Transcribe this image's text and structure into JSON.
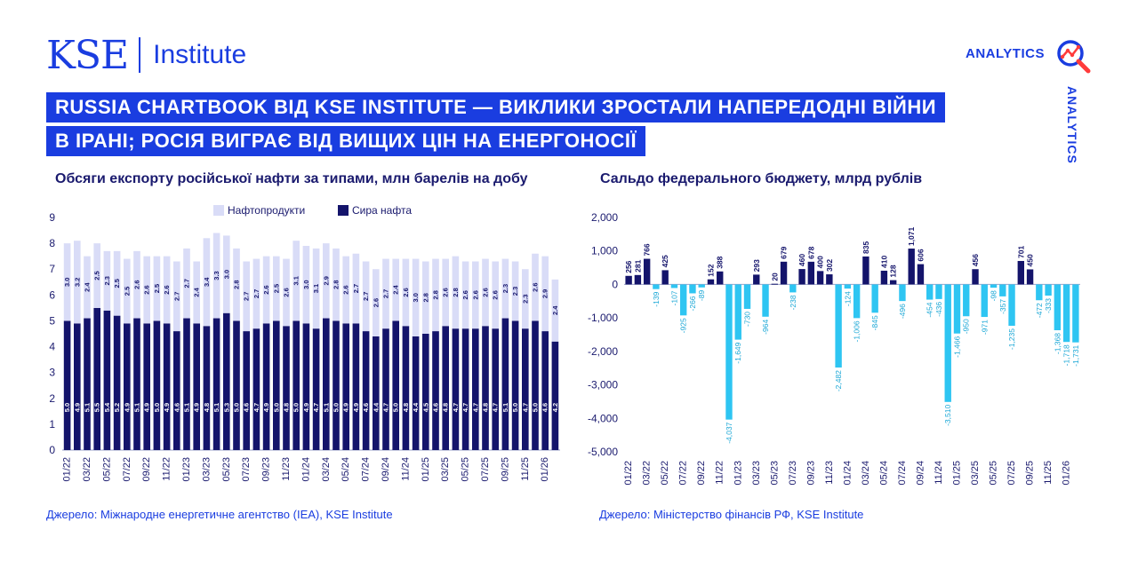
{
  "brand": {
    "logo": "KSE",
    "name": "Institute",
    "analytics": "ANALYTICS",
    "analytics_vertical": "ANALYTICS",
    "analytics_icon": "magnifier-chart-icon"
  },
  "banner": {
    "line1": "RUSSIA CHARTBOOK ВІД KSE INSTITUTE — ВИКЛИКИ ЗРОСТАЛИ НАПЕРЕДОДНІ ВІЙНИ",
    "line2": "В ІРАНІ; РОСІЯ ВИГРАЄ ВІД ВИЩИХ ЦІН НА ЕНЕРГОНОСІЇ"
  },
  "colors": {
    "brand": "#1a3de0",
    "crude": "#14146b",
    "products": "#d9dcf7",
    "surplus": "#14146b",
    "deficit": "#2ec5f2"
  },
  "chart_data": [
    {
      "type": "bar",
      "stacked": true,
      "title": "Обсяги експорту російської нафти за типами, млн барелів на добу",
      "source": "Джерело: Міжнародне енергетичне агентство (IEA), KSE Institute",
      "ylim": [
        0,
        9
      ],
      "yticks": [
        "0",
        "1",
        "2",
        "3",
        "4",
        "5",
        "6",
        "7",
        "8",
        "9"
      ],
      "legend": [
        "Нафтопродукти",
        "Сира нафта"
      ],
      "legend_position": "top",
      "x_ticks_shown": [
        "01/22",
        "03/22",
        "05/22",
        "07/22",
        "09/22",
        "11/22",
        "01/23",
        "03/23",
        "05/23",
        "07/23",
        "09/23",
        "11/23",
        "01/24",
        "03/24",
        "05/24",
        "07/24",
        "09/24",
        "11/24",
        "01/25",
        "03/25",
        "05/25",
        "07/25",
        "09/25",
        "11/25",
        "01/26"
      ],
      "series": [
        {
          "name": "Сира нафта",
          "values": [
            5.0,
            4.9,
            5.1,
            5.5,
            5.4,
            5.2,
            4.9,
            5.1,
            4.9,
            5.0,
            4.9,
            4.6,
            5.1,
            4.9,
            4.8,
            5.1,
            5.3,
            5.0,
            4.6,
            4.7,
            4.9,
            5.0,
            4.8,
            5.0,
            4.9,
            4.7,
            5.1,
            5.0,
            4.9,
            4.9,
            4.6,
            4.4,
            4.7,
            5.0,
            4.8,
            4.4,
            4.5,
            4.6,
            4.8,
            4.7,
            4.7,
            4.7,
            4.8,
            4.7,
            5.1,
            5.0,
            4.7,
            5.0,
            4.6,
            4.2
          ]
        },
        {
          "name": "Нафтопродукти",
          "values": [
            3.0,
            3.2,
            2.4,
            2.5,
            2.3,
            2.5,
            2.5,
            2.6,
            2.6,
            2.5,
            2.6,
            2.7,
            2.7,
            2.4,
            3.4,
            3.3,
            3.0,
            2.8,
            2.7,
            2.7,
            2.6,
            2.5,
            2.6,
            3.1,
            3.0,
            3.1,
            2.9,
            2.8,
            2.6,
            2.7,
            2.7,
            2.6,
            2.7,
            2.4,
            2.6,
            3.0,
            2.8,
            2.8,
            2.6,
            2.8,
            2.6,
            2.6,
            2.6,
            2.6,
            2.3,
            2.3,
            2.3,
            2.6,
            2.9,
            2.4
          ]
        }
      ]
    },
    {
      "type": "bar",
      "title": "Сальдо федерального бюджету, млрд рублів",
      "source": "Джерело: Міністерство фінансів РФ, KSE Institute",
      "ylim": [
        -5000,
        2000
      ],
      "yticks": [
        "2,000",
        "1,000",
        "0",
        "-1,000",
        "-2,000",
        "-3,000",
        "-4,000",
        "-5,000"
      ],
      "x_ticks_shown": [
        "01/22",
        "03/22",
        "05/22",
        "07/22",
        "09/22",
        "11/22",
        "01/23",
        "03/23",
        "05/23",
        "07/23",
        "09/23",
        "11/23",
        "01/24",
        "03/24",
        "05/24",
        "07/24",
        "09/24",
        "11/24",
        "01/25",
        "03/25",
        "05/25",
        "07/25",
        "09/25",
        "11/25",
        "01/26"
      ],
      "values": [
        256,
        281,
        766,
        -139,
        425,
        -107,
        -925,
        -266,
        -89,
        152,
        388,
        -4037,
        -1649,
        -730,
        293,
        -964,
        20,
        679,
        -238,
        460,
        678,
        400,
        302,
        -2482,
        -124,
        -1006,
        835,
        -845,
        410,
        128,
        -496,
        1071,
        606,
        -454,
        -436,
        -3510,
        -1466,
        -950,
        456,
        -971,
        -98,
        -357,
        -1235,
        701,
        450,
        -472,
        -333,
        -1368,
        -1718,
        -1731
      ],
      "labels": [
        "256",
        "281",
        "766",
        "-139",
        "425",
        "-107",
        "-925",
        "-266",
        "-89",
        "152",
        "388",
        "-4,037",
        "-1,649",
        "-730",
        "293",
        "-964",
        "20",
        "679",
        "-238",
        "460",
        "678",
        "400",
        "302",
        "-2,482",
        "-124",
        "-1,006",
        "835",
        "-845",
        "410",
        "128",
        "-496",
        "1,071",
        "606",
        "-454",
        "-436",
        "-3,510",
        "-1,466",
        "-950",
        "456",
        "-971",
        "-98",
        "-357",
        "-1,235",
        "701",
        "450",
        "-472",
        "-333",
        "-1,368",
        "-1,718",
        "-1,731"
      ]
    }
  ]
}
